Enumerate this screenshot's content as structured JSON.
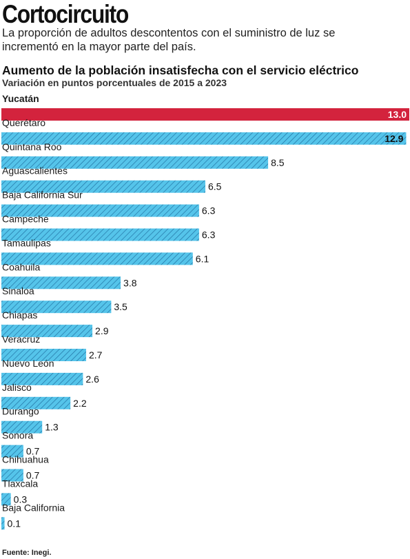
{
  "header": {
    "title": "Cortocircuito",
    "subtitle": "La proporción de adultos descontentos con el suministro de luz se incrementó en la mayor parte del país."
  },
  "chart_data": {
    "type": "bar",
    "orientation": "horizontal",
    "title": "Aumento de la población insatisfecha con el servicio eléctrico",
    "subtitle": "Variación en puntos porcentuales de 2015 a 2023",
    "categories": [
      "Yucatán",
      "Querétaro",
      "Quintana Roo",
      "Aguascalientes",
      "Baja California Sur",
      "Campeche",
      "Tamaulipas",
      "Coahuila",
      "Sinaloa",
      "Chiapas",
      "Veracruz",
      "Nuevo León",
      "Jalisco",
      "Durango",
      "Sonora",
      "Chihuahua",
      "Tlaxcala",
      "Baja California"
    ],
    "values": [
      13.0,
      12.9,
      8.5,
      6.5,
      6.3,
      6.3,
      6.1,
      3.8,
      3.5,
      2.9,
      2.7,
      2.6,
      2.2,
      1.3,
      0.7,
      0.7,
      0.3,
      0.1
    ],
    "value_labels": [
      "13.0",
      "12.9",
      "8.5",
      "6.5",
      "6.3",
      "6.3",
      "6.1",
      "3.8",
      "3.5",
      "2.9",
      "2.7",
      "2.6",
      "2.2",
      "1.3",
      "0.7",
      "0.7",
      "0.3",
      "0.1"
    ],
    "highlight_index": 0,
    "xlim": [
      0,
      13.0
    ],
    "colors": {
      "highlight": "#d3233d",
      "bar": "#55c4ea",
      "hatch": "#1f6fa0"
    }
  },
  "footer": {
    "source": "Fuente: Inegi."
  }
}
